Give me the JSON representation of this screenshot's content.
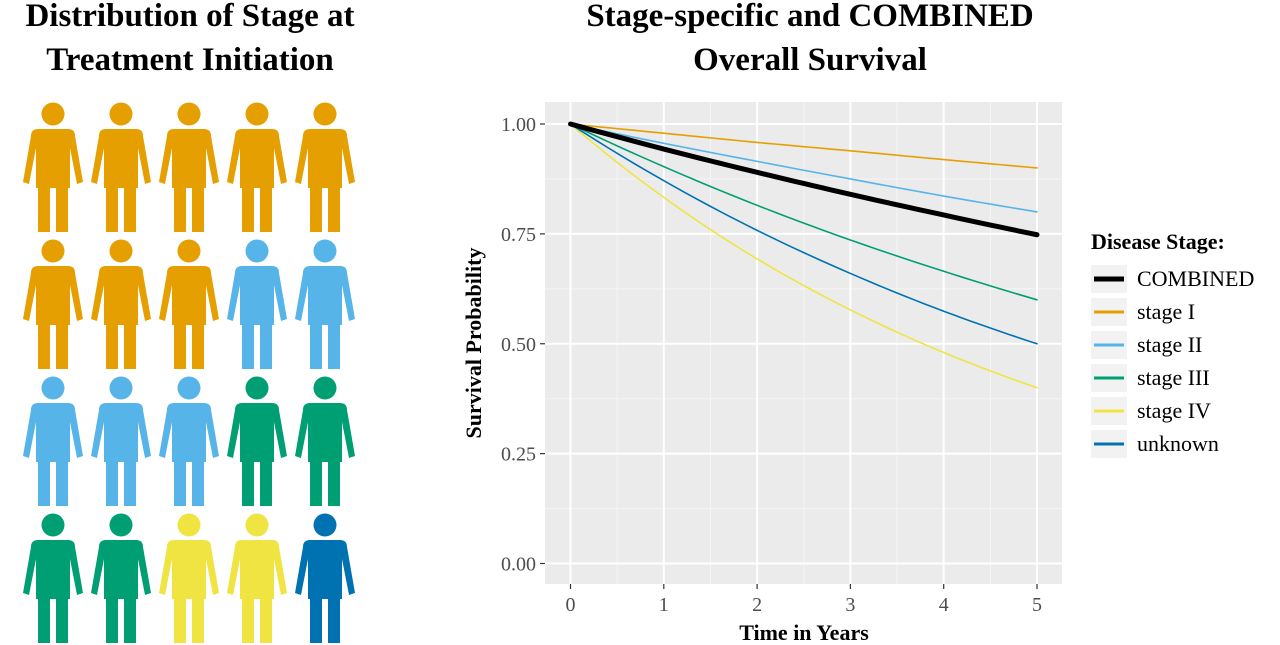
{
  "left_panel": {
    "title_line1": "Distribution of Stage at",
    "title_line2": "Treatment Initiation",
    "figures": [
      "stage I",
      "stage I",
      "stage I",
      "stage I",
      "stage I",
      "stage I",
      "stage I",
      "stage I",
      "stage II",
      "stage II",
      "stage II",
      "stage II",
      "stage II",
      "stage III",
      "stage III",
      "stage III",
      "stage III",
      "stage IV",
      "stage IV",
      "unknown"
    ]
  },
  "right_panel": {
    "title_line1": "Stage-specific and COMBINED",
    "title_line2": "Overall Survival"
  },
  "chart_data": {
    "type": "line",
    "xlabel": "Time in Years",
    "ylabel": "Survival Probability",
    "xlim": [
      0,
      5
    ],
    "ylim": [
      0,
      1
    ],
    "xticks": [
      0,
      1,
      2,
      3,
      4,
      5
    ],
    "yticks": [
      0.0,
      0.25,
      0.5,
      0.75,
      1.0
    ],
    "ytick_labels": [
      "0.00",
      "0.25",
      "0.50",
      "0.75",
      "1.00"
    ],
    "grid": true,
    "legend": {
      "title": "Disease Stage:",
      "position": "right"
    },
    "x": [
      0,
      1,
      2,
      3,
      4,
      5
    ],
    "series": [
      {
        "name": "COMBINED",
        "color": "#000000",
        "values": [
          1.0,
          0.943,
          0.89,
          0.84,
          0.793,
          0.748
        ],
        "bold": true
      },
      {
        "name": "stage I",
        "color": "#E69F00",
        "values": [
          1.0,
          0.979,
          0.958,
          0.939,
          0.919,
          0.9
        ]
      },
      {
        "name": "stage II",
        "color": "#56B4E9",
        "values": [
          1.0,
          0.956,
          0.915,
          0.875,
          0.836,
          0.8
        ]
      },
      {
        "name": "stage III",
        "color": "#009E73",
        "values": [
          1.0,
          0.903,
          0.815,
          0.736,
          0.665,
          0.6
        ]
      },
      {
        "name": "stage IV",
        "color": "#F0E442",
        "values": [
          1.0,
          0.833,
          0.693,
          0.577,
          0.48,
          0.4
        ]
      },
      {
        "name": "unknown",
        "color": "#0072B2",
        "values": [
          1.0,
          0.871,
          0.758,
          0.66,
          0.574,
          0.5
        ]
      }
    ]
  }
}
